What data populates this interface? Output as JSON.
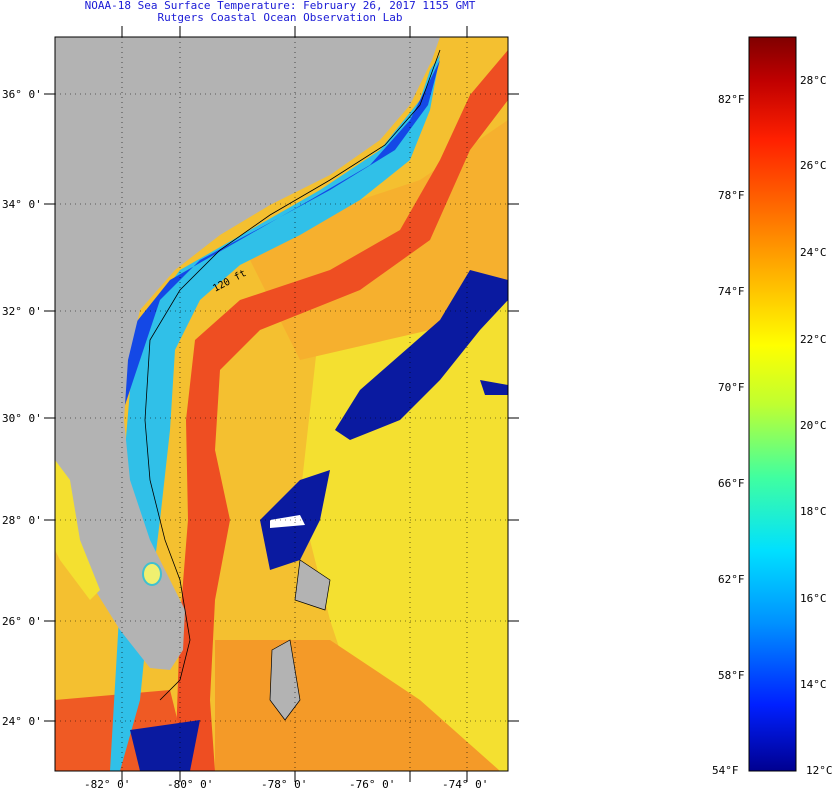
{
  "title": {
    "line1": "NOAA-18 Sea Surface Temperature:  February 26, 2017 1155 GMT",
    "line2": "Rutgers Coastal Ocean Observation Lab"
  },
  "map": {
    "lat_labels": [
      "36° 0'",
      "34° 0'",
      "32° 0'",
      "30° 0'",
      "28° 0'",
      "26° 0'",
      "24° 0'"
    ],
    "lon_labels": [
      "-82° 0'",
      "-80° 0'",
      "-78° 0'",
      "-76° 0'",
      "-74° 0'"
    ],
    "isobath_label": "120 ft",
    "colors": {
      "land": "#b3b3b3",
      "gulf_stream": "#ee5020",
      "warm_water": "#f2a12a",
      "mid_water": "#f4e82a",
      "shelf_water": "#28c8e0",
      "cold_coast": "#1040e0",
      "cloud": "#0a1aa0"
    }
  },
  "colorbar": {
    "fahrenheit": [
      "82°F",
      "78°F",
      "74°F",
      "70°F",
      "66°F",
      "62°F",
      "58°F",
      "54°F"
    ],
    "celsius": [
      "28°C",
      "26°C",
      "24°C",
      "22°C",
      "20°C",
      "18°C",
      "16°C",
      "14°C",
      "12°C"
    ],
    "stops": [
      "#000090",
      "#0020ff",
      "#0090ff",
      "#00e0ff",
      "#40ffa0",
      "#c0ff30",
      "#ffff00",
      "#ffc000",
      "#ff7000",
      "#ff2000",
      "#c00000",
      "#800000"
    ]
  }
}
